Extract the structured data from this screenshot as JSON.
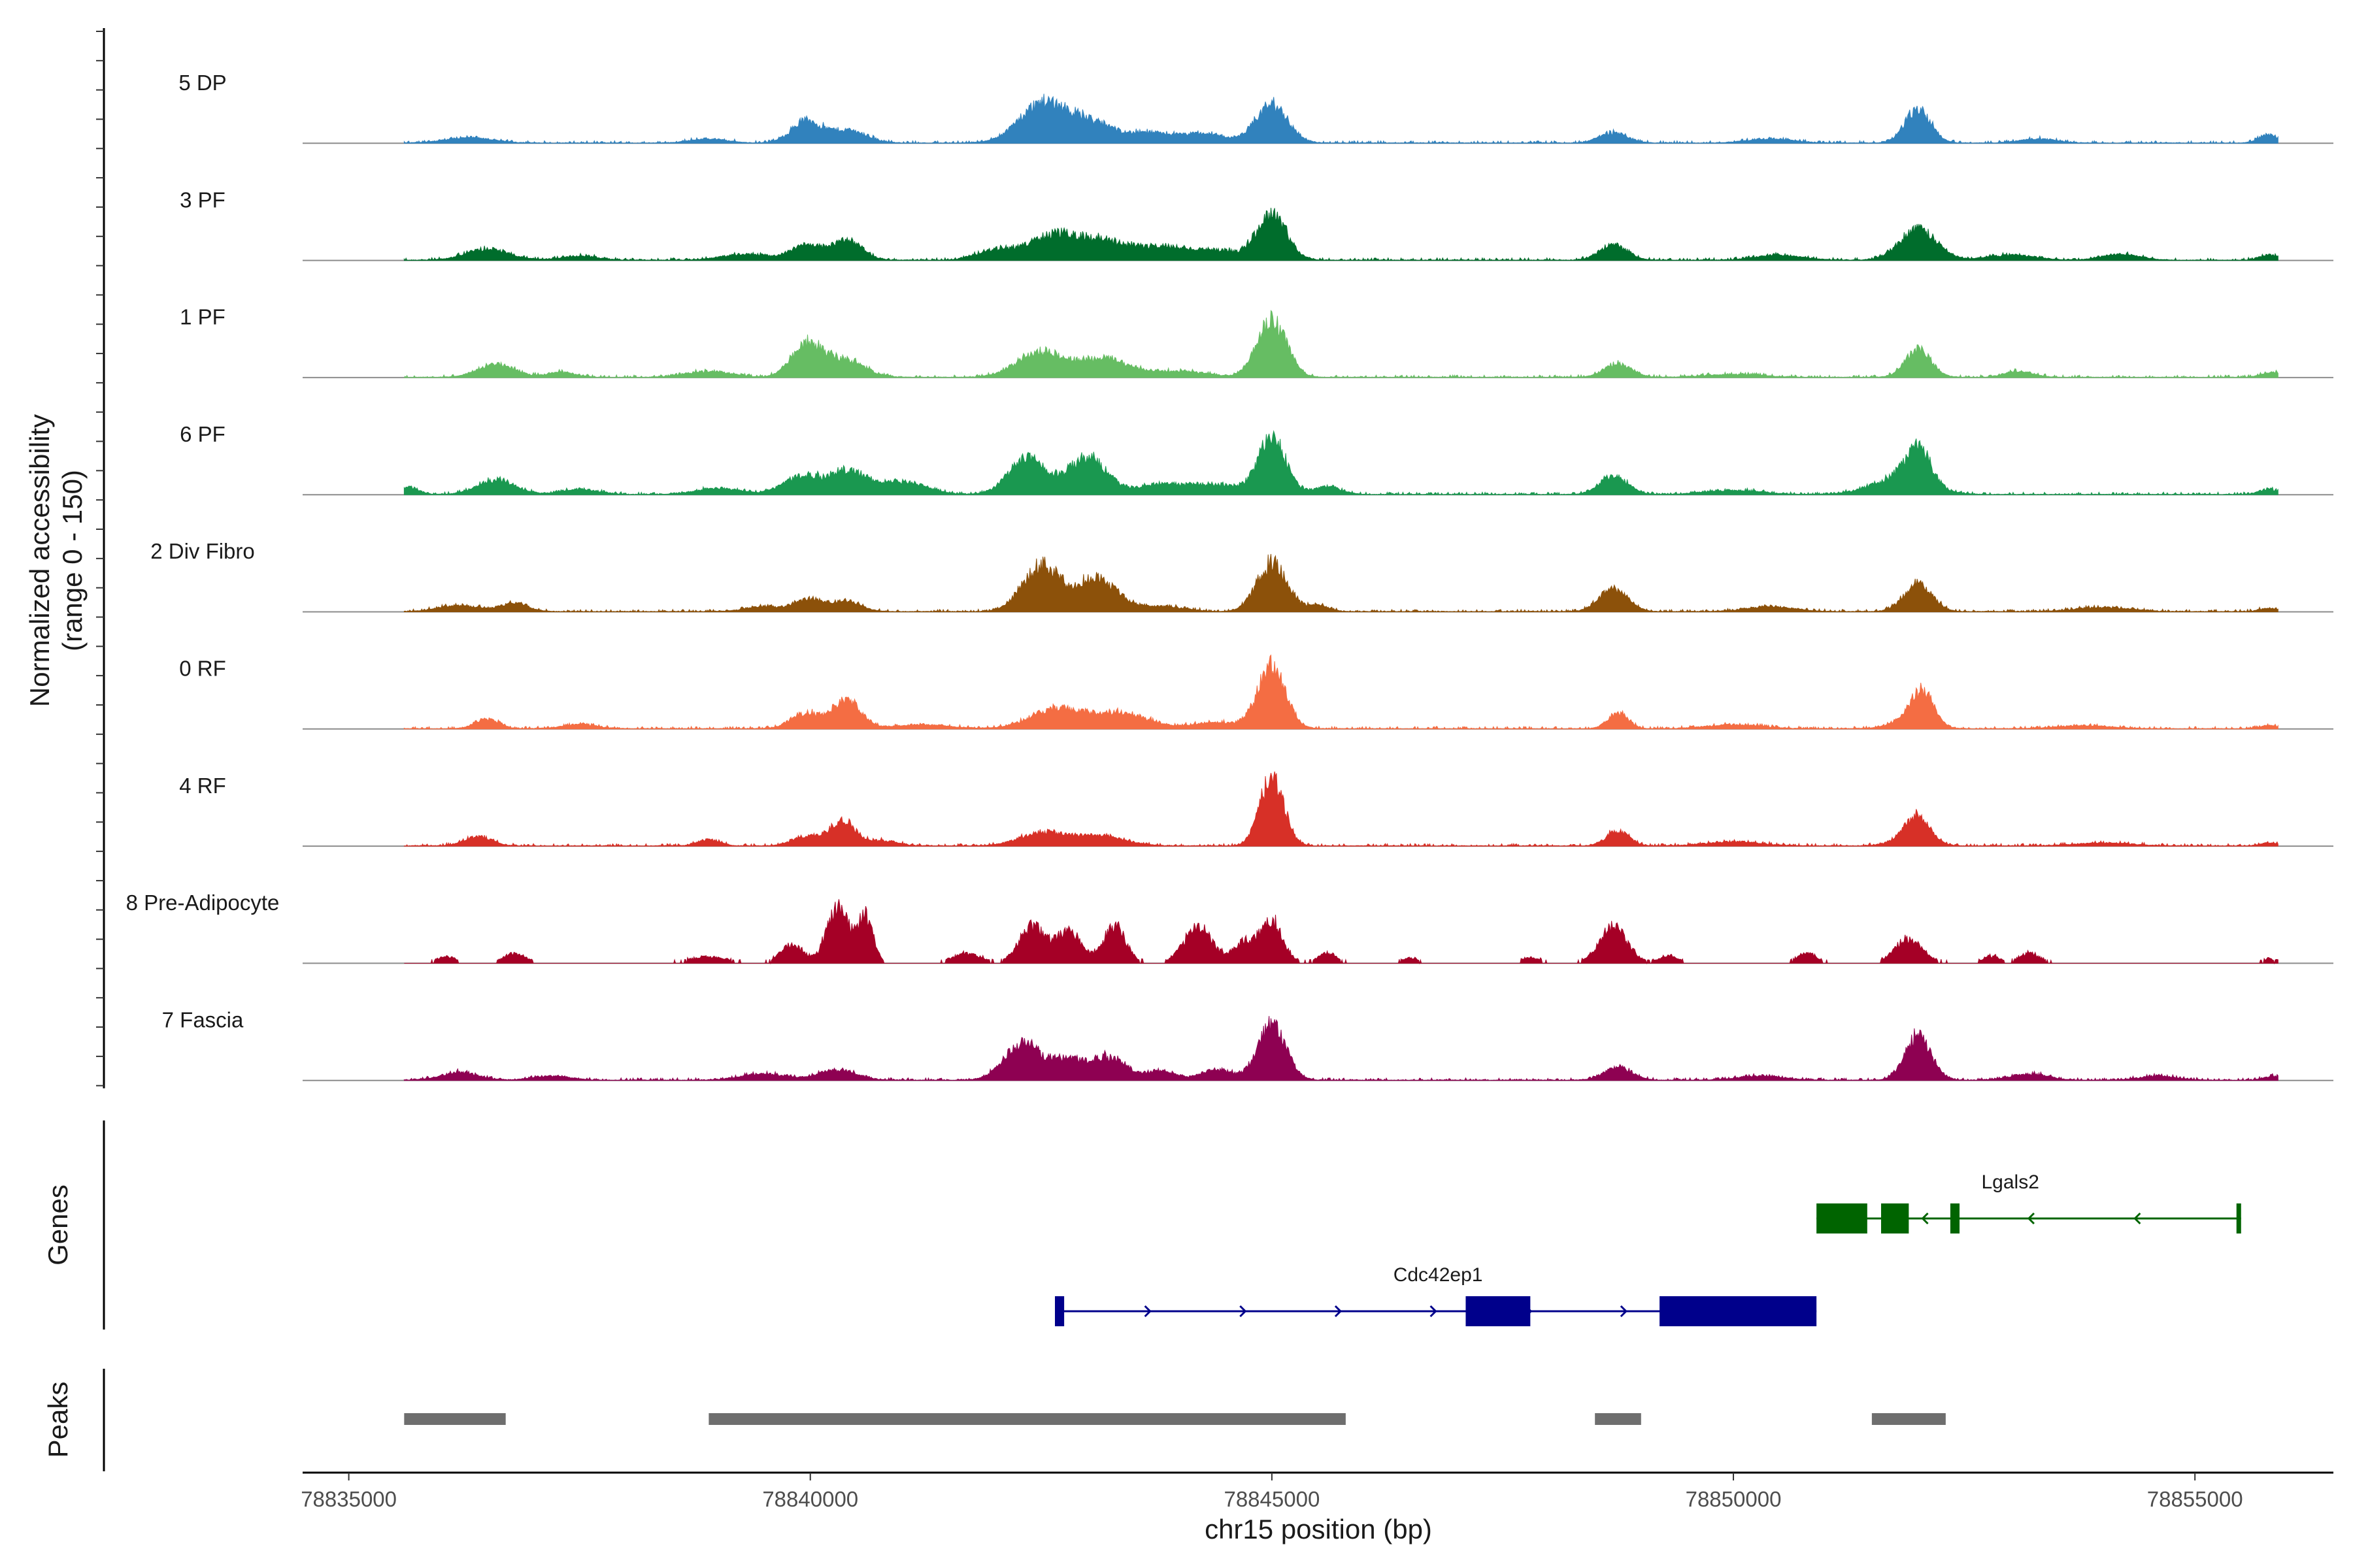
{
  "chart_data": {
    "type": "area",
    "title": "",
    "chromosome": "chr15",
    "xlabel": "chr15 position (bp)",
    "ylabel": "Normalized accessibility",
    "ylabel_range": "(range 0 - 150)",
    "xlim": [
      78834500,
      78856500
    ],
    "ylim": [
      0,
      150
    ],
    "x_ticks": [
      78835000,
      78840000,
      78845000,
      78850000,
      78855000
    ],
    "x_tick_labels": [
      "78835000",
      "78840000",
      "78845000",
      "78850000",
      "78855000"
    ],
    "signal_start": 78835600,
    "signal_end": 78855900,
    "peak_positions_note": "Peak centers (bp) shared across tracks, heights in normalized accessibility units",
    "tracks": [
      {
        "name": "5 DP",
        "color": "#3182BD",
        "noise": 0.1,
        "peaks": [
          [
            78836300,
            10,
            260
          ],
          [
            78838900,
            8,
            200
          ],
          [
            78839950,
            42,
            160
          ],
          [
            78840400,
            25,
            200
          ],
          [
            78842500,
            70,
            250
          ],
          [
            78843000,
            40,
            300
          ],
          [
            78843700,
            16,
            220
          ],
          [
            78844250,
            18,
            250
          ],
          [
            78845000,
            75,
            170
          ],
          [
            78848700,
            20,
            150
          ],
          [
            78850400,
            8,
            250
          ],
          [
            78852000,
            65,
            140
          ],
          [
            78853300,
            8,
            200
          ],
          [
            78855800,
            16,
            100
          ]
        ]
      },
      {
        "name": "3 PF",
        "color": "#006D2C",
        "noise": 0.1,
        "peaks": [
          [
            78836500,
            22,
            230
          ],
          [
            78837500,
            8,
            200
          ],
          [
            78839300,
            12,
            250
          ],
          [
            78839950,
            30,
            160
          ],
          [
            78840400,
            40,
            160
          ],
          [
            78842000,
            18,
            200
          ],
          [
            78842650,
            50,
            280
          ],
          [
            78843200,
            30,
            250
          ],
          [
            78843800,
            25,
            280
          ],
          [
            78844400,
            18,
            250
          ],
          [
            78845000,
            90,
            160
          ],
          [
            78848700,
            30,
            150
          ],
          [
            78850500,
            10,
            250
          ],
          [
            78852000,
            60,
            200
          ],
          [
            78853000,
            10,
            260
          ],
          [
            78854200,
            12,
            200
          ],
          [
            78855800,
            10,
            100
          ]
        ]
      },
      {
        "name": "1 PF",
        "color": "#66BD63",
        "noise": 0.1,
        "peaks": [
          [
            78836600,
            25,
            200
          ],
          [
            78837300,
            10,
            150
          ],
          [
            78838900,
            12,
            240
          ],
          [
            78839950,
            60,
            160
          ],
          [
            78840350,
            35,
            220
          ],
          [
            78842500,
            50,
            260
          ],
          [
            78843200,
            35,
            260
          ],
          [
            78844000,
            12,
            300
          ],
          [
            78845000,
            110,
            160
          ],
          [
            78848750,
            25,
            150
          ],
          [
            78850000,
            6,
            300
          ],
          [
            78852000,
            55,
            140
          ],
          [
            78853100,
            12,
            150
          ],
          [
            78855850,
            10,
            120
          ]
        ]
      },
      {
        "name": "6 PF",
        "color": "#1A9850",
        "noise": 0.12,
        "peaks": [
          [
            78835650,
            15,
            100
          ],
          [
            78836600,
            28,
            200
          ],
          [
            78837500,
            10,
            200
          ],
          [
            78839000,
            12,
            240
          ],
          [
            78839900,
            35,
            200
          ],
          [
            78840400,
            45,
            200
          ],
          [
            78841000,
            25,
            250
          ],
          [
            78842350,
            70,
            200
          ],
          [
            78843000,
            75,
            200
          ],
          [
            78843800,
            20,
            280
          ],
          [
            78844400,
            18,
            250
          ],
          [
            78845000,
            110,
            150
          ],
          [
            78845600,
            15,
            150
          ],
          [
            78848700,
            35,
            150
          ],
          [
            78850000,
            8,
            300
          ],
          [
            78851800,
            30,
            300
          ],
          [
            78852000,
            70,
            140
          ],
          [
            78855800,
            10,
            100
          ]
        ]
      },
      {
        "name": "2 Div Fibro",
        "color": "#8C510A",
        "noise": 0.08,
        "peaks": [
          [
            78836200,
            12,
            220
          ],
          [
            78836800,
            16,
            150
          ],
          [
            78839500,
            10,
            200
          ],
          [
            78840000,
            25,
            150
          ],
          [
            78840400,
            20,
            150
          ],
          [
            78842500,
            90,
            200
          ],
          [
            78843100,
            65,
            220
          ],
          [
            78843800,
            10,
            250
          ],
          [
            78845000,
            95,
            160
          ],
          [
            78845500,
            12,
            120
          ],
          [
            78848700,
            45,
            150
          ],
          [
            78850400,
            10,
            250
          ],
          [
            78852000,
            55,
            150
          ],
          [
            78854000,
            8,
            300
          ],
          [
            78855800,
            6,
            100
          ]
        ]
      },
      {
        "name": "0 RF",
        "color": "#F46D43",
        "noise": 0.08,
        "peaks": [
          [
            78836500,
            18,
            130
          ],
          [
            78837500,
            8,
            200
          ],
          [
            78839950,
            30,
            160
          ],
          [
            78840400,
            55,
            150
          ],
          [
            78841200,
            8,
            300
          ],
          [
            78842700,
            40,
            300
          ],
          [
            78843400,
            30,
            250
          ],
          [
            78844400,
            12,
            300
          ],
          [
            78845000,
            120,
            150
          ],
          [
            78848750,
            30,
            110
          ],
          [
            78850000,
            8,
            300
          ],
          [
            78851900,
            15,
            200
          ],
          [
            78852050,
            65,
            120
          ],
          [
            78853800,
            6,
            300
          ],
          [
            78855800,
            6,
            100
          ]
        ]
      },
      {
        "name": "4 RF",
        "color": "#D73027",
        "noise": 0.08,
        "peaks": [
          [
            78836400,
            18,
            150
          ],
          [
            78838900,
            12,
            120
          ],
          [
            78839950,
            18,
            150
          ],
          [
            78840350,
            50,
            140
          ],
          [
            78840800,
            10,
            150
          ],
          [
            78842500,
            25,
            240
          ],
          [
            78843100,
            20,
            280
          ],
          [
            78845000,
            130,
            130
          ],
          [
            78848750,
            30,
            120
          ],
          [
            78850000,
            8,
            300
          ],
          [
            78851900,
            12,
            200
          ],
          [
            78852000,
            50,
            130
          ],
          [
            78854000,
            6,
            300
          ],
          [
            78855800,
            6,
            100
          ]
        ]
      },
      {
        "name": "8 Pre-Adipocyte",
        "color": "#A50026",
        "noise": 0.05,
        "peaks": [
          [
            78836050,
            12,
            100
          ],
          [
            78836800,
            18,
            120
          ],
          [
            78838900,
            12,
            200
          ],
          [
            78839800,
            35,
            120
          ],
          [
            78840300,
            110,
            120
          ],
          [
            78840600,
            90,
            80
          ],
          [
            78841700,
            18,
            150
          ],
          [
            78842400,
            70,
            140
          ],
          [
            78842800,
            60,
            140
          ],
          [
            78843300,
            70,
            120
          ],
          [
            78844200,
            70,
            150
          ],
          [
            78844700,
            40,
            120
          ],
          [
            78845000,
            80,
            120
          ],
          [
            78845600,
            20,
            100
          ],
          [
            78846500,
            10,
            80
          ],
          [
            78847800,
            10,
            100
          ],
          [
            78848700,
            70,
            150
          ],
          [
            78849300,
            14,
            100
          ],
          [
            78850800,
            20,
            100
          ],
          [
            78851900,
            45,
            150
          ],
          [
            78852800,
            12,
            100
          ],
          [
            78853200,
            20,
            100
          ],
          [
            78855800,
            8,
            80
          ]
        ]
      },
      {
        "name": "7 Fascia",
        "color": "#8E0152",
        "noise": 0.08,
        "peaks": [
          [
            78836200,
            15,
            200
          ],
          [
            78837200,
            8,
            200
          ],
          [
            78839500,
            12,
            250
          ],
          [
            78840300,
            20,
            200
          ],
          [
            78842300,
            70,
            200
          ],
          [
            78842800,
            40,
            180
          ],
          [
            78843250,
            45,
            180
          ],
          [
            78843800,
            18,
            150
          ],
          [
            78844400,
            20,
            180
          ],
          [
            78845000,
            110,
            150
          ],
          [
            78848750,
            25,
            150
          ],
          [
            78850300,
            8,
            250
          ],
          [
            78852000,
            85,
            140
          ],
          [
            78853200,
            12,
            200
          ],
          [
            78854600,
            8,
            200
          ],
          [
            78855850,
            8,
            100
          ]
        ]
      }
    ],
    "genes": [
      {
        "name": "Lgals2",
        "strand": "-",
        "color": "#006400",
        "start": 78850900,
        "end": 78855500,
        "exons": [
          [
            78850900,
            78851450
          ],
          [
            78851600,
            78851900
          ],
          [
            78852350,
            78852450
          ],
          [
            78855450,
            78855500
          ]
        ]
      },
      {
        "name": "Cdc42ep1",
        "strand": "+",
        "color": "#00008B",
        "start": 78842650,
        "end": 78850900,
        "exons": [
          [
            78842650,
            78842750
          ],
          [
            78847100,
            78847800
          ],
          [
            78849200,
            78850900
          ]
        ]
      }
    ],
    "peaks_track": [
      [
        78835600,
        78836700
      ],
      [
        78838900,
        78845800
      ],
      [
        78848500,
        78849000
      ],
      [
        78851500,
        78852300
      ]
    ],
    "panel_labels": {
      "genes": "Genes",
      "peaks": "Peaks"
    }
  }
}
